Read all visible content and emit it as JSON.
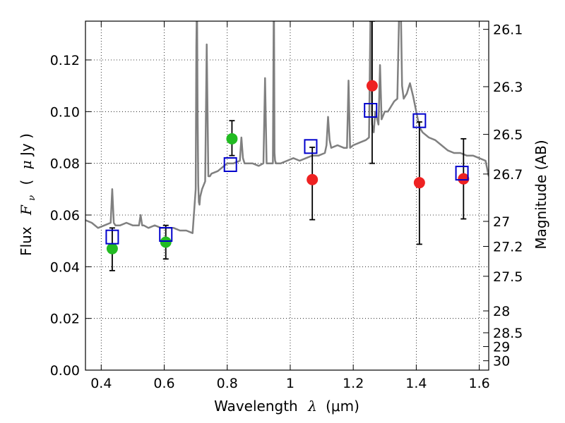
{
  "chart_data": {
    "type": "scatter",
    "title": "",
    "xlabel_main": "Wavelength",
    "xlabel_symbol": "λ",
    "xlabel_unit": "(μm)",
    "ylabel_main": "Flux",
    "ylabel_symbol": "F",
    "ylabel_sub": "ν",
    "ylabel_unit_open": "(",
    "ylabel_unit_mu": "μ",
    "ylabel_unit_rest": "Jy )",
    "y2label": "Magnitude (AB)",
    "xlim": [
      0.35,
      1.63
    ],
    "ylim": [
      0.0,
      0.135
    ],
    "grid": true,
    "x_ticks": [
      {
        "value": 0.4,
        "label": "0.4"
      },
      {
        "value": 0.6,
        "label": "0.6"
      },
      {
        "value": 0.8,
        "label": "0.8"
      },
      {
        "value": 1.0,
        "label": "1"
      },
      {
        "value": 1.2,
        "label": "1.2"
      },
      {
        "value": 1.4,
        "label": "1.4"
      },
      {
        "value": 1.6,
        "label": "1.6"
      }
    ],
    "y_ticks": [
      {
        "value": 0.0,
        "label": "0.00"
      },
      {
        "value": 0.02,
        "label": "0.02"
      },
      {
        "value": 0.04,
        "label": "0.04"
      },
      {
        "value": 0.06,
        "label": "0.06"
      },
      {
        "value": 0.08,
        "label": "0.08"
      },
      {
        "value": 0.1,
        "label": "0.10"
      },
      {
        "value": 0.12,
        "label": "0.12"
      }
    ],
    "y2_ticks": [
      {
        "mag": 26.1,
        "label": "26.1"
      },
      {
        "mag": 26.3,
        "label": "26.3"
      },
      {
        "mag": 26.5,
        "label": "26.5"
      },
      {
        "mag": 26.7,
        "label": "26.7"
      },
      {
        "mag": 27.0,
        "label": "27"
      },
      {
        "mag": 27.2,
        "label": "27.2"
      },
      {
        "mag": 27.5,
        "label": "27.5"
      },
      {
        "mag": 28.0,
        "label": "28"
      },
      {
        "mag": 28.5,
        "label": "28.5"
      },
      {
        "mag": 29.0,
        "label": "29"
      },
      {
        "mag": 30.0,
        "label": "30"
      }
    ],
    "series": [
      {
        "name": "model-spectrum",
        "kind": "line",
        "color": "#808080",
        "x": [
          0.35,
          0.37,
          0.39,
          0.41,
          0.43,
          0.435,
          0.44,
          0.445,
          0.46,
          0.48,
          0.5,
          0.52,
          0.525,
          0.53,
          0.535,
          0.55,
          0.57,
          0.59,
          0.61,
          0.63,
          0.65,
          0.67,
          0.69,
          0.7,
          0.702,
          0.704,
          0.706,
          0.708,
          0.71,
          0.712,
          0.714,
          0.72,
          0.73,
          0.735,
          0.74,
          0.745,
          0.75,
          0.77,
          0.79,
          0.8,
          0.82,
          0.84,
          0.845,
          0.85,
          0.855,
          0.86,
          0.88,
          0.9,
          0.915,
          0.92,
          0.925,
          0.93,
          0.945,
          0.948,
          0.95,
          0.952,
          0.955,
          0.97,
          0.99,
          1.01,
          1.03,
          1.05,
          1.07,
          1.09,
          1.11,
          1.115,
          1.12,
          1.125,
          1.13,
          1.15,
          1.17,
          1.18,
          1.185,
          1.19,
          1.2,
          1.22,
          1.24,
          1.25,
          1.255,
          1.26,
          1.265,
          1.27,
          1.28,
          1.285,
          1.29,
          1.3,
          1.31,
          1.32,
          1.33,
          1.34,
          1.345,
          1.35,
          1.355,
          1.36,
          1.37,
          1.38,
          1.39,
          1.4,
          1.41,
          1.42,
          1.44,
          1.46,
          1.48,
          1.5,
          1.52,
          1.54,
          1.56,
          1.58,
          1.6,
          1.62,
          1.63
        ],
        "y": [
          0.058,
          0.057,
          0.055,
          0.056,
          0.057,
          0.07,
          0.057,
          0.056,
          0.056,
          0.057,
          0.056,
          0.056,
          0.06,
          0.056,
          0.056,
          0.055,
          0.056,
          0.055,
          0.055,
          0.055,
          0.054,
          0.054,
          0.053,
          0.07,
          0.125,
          0.145,
          0.1,
          0.072,
          0.065,
          0.064,
          0.067,
          0.07,
          0.073,
          0.126,
          0.075,
          0.075,
          0.076,
          0.077,
          0.079,
          0.08,
          0.08,
          0.081,
          0.09,
          0.082,
          0.08,
          0.08,
          0.08,
          0.079,
          0.08,
          0.113,
          0.08,
          0.08,
          0.08,
          0.15,
          0.084,
          0.081,
          0.08,
          0.08,
          0.081,
          0.082,
          0.081,
          0.082,
          0.083,
          0.083,
          0.084,
          0.087,
          0.098,
          0.089,
          0.086,
          0.087,
          0.086,
          0.086,
          0.112,
          0.086,
          0.087,
          0.088,
          0.089,
          0.09,
          0.14,
          0.095,
          0.092,
          0.1,
          0.095,
          0.118,
          0.097,
          0.1,
          0.1,
          0.102,
          0.104,
          0.105,
          0.135,
          0.148,
          0.11,
          0.105,
          0.107,
          0.111,
          0.106,
          0.1,
          0.094,
          0.092,
          0.09,
          0.089,
          0.087,
          0.085,
          0.084,
          0.084,
          0.083,
          0.083,
          0.082,
          0.081,
          0.075
        ]
      },
      {
        "name": "observed-green",
        "kind": "scatter",
        "marker": "circle",
        "color": "#22bb22",
        "x": [
          0.435,
          0.605,
          0.815
        ],
        "y": [
          0.047,
          0.0495,
          0.0895
        ],
        "yerr_low": [
          0.0385,
          0.043,
          0.083
        ],
        "yerr_high": [
          0.055,
          0.056,
          0.0965
        ]
      },
      {
        "name": "observed-red",
        "kind": "scatter",
        "marker": "circle",
        "color": "#ee2222",
        "x": [
          1.07,
          1.26,
          1.41,
          1.55
        ],
        "y": [
          0.0737,
          0.11,
          0.0725,
          0.074
        ],
        "yerr_low": [
          0.0582,
          0.08,
          0.0487,
          0.0585
        ],
        "yerr_high": [
          0.0862,
          0.135,
          0.096,
          0.0895
        ]
      },
      {
        "name": "model-photometry",
        "kind": "scatter",
        "marker": "open-square",
        "color": "#0000cc",
        "x": [
          0.435,
          0.605,
          0.81,
          1.065,
          1.255,
          1.41,
          1.545
        ],
        "y": [
          0.0515,
          0.0525,
          0.0795,
          0.0865,
          0.1005,
          0.0965,
          0.0762
        ]
      }
    ]
  }
}
